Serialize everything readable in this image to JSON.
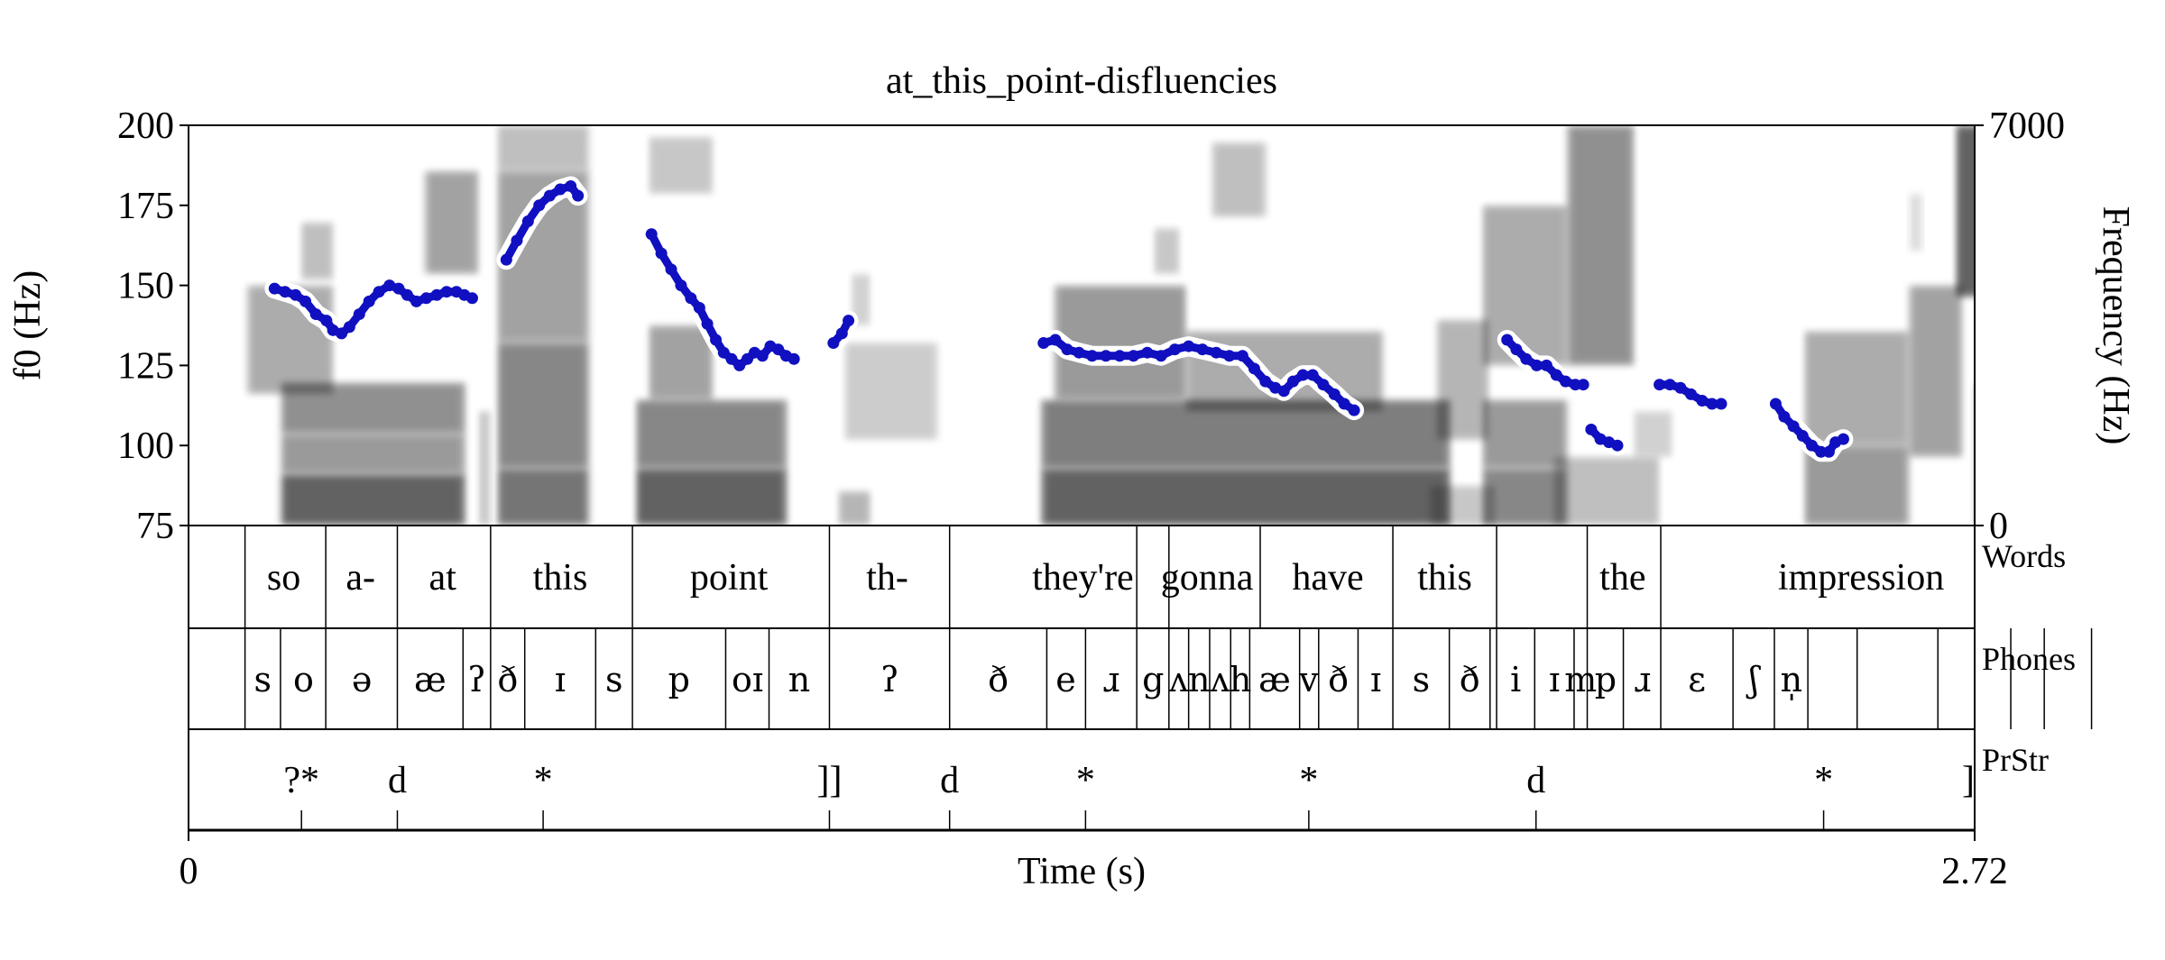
{
  "chart_data": {
    "type": "spectrogram-pitch",
    "title": "at_this_point-disfluencies",
    "xlabel": "Time (s)",
    "ylabel_left": "f0 (Hz)",
    "ylabel_right": "Frequency (Hz)",
    "xlim": [
      0,
      2.72
    ],
    "x_tick_labels": [
      "0",
      "2.72"
    ],
    "f0_range": [
      75,
      200
    ],
    "f0_ticks": [
      75,
      100,
      125,
      150,
      175,
      200
    ],
    "freq_range": [
      0,
      7000
    ],
    "freq_ticks": [
      0,
      7000
    ],
    "colors": {
      "pitch": "#1010c0",
      "pitch_halo": "#ffffff",
      "spectrogram": "#000000",
      "axis": "#000000"
    },
    "pitch_segments": [
      {
        "points": [
          [
            0.131,
            149
          ],
          [
            0.147,
            148
          ],
          [
            0.163,
            147
          ],
          [
            0.178,
            145
          ],
          [
            0.194,
            141
          ],
          [
            0.21,
            139
          ],
          [
            0.22,
            136
          ],
          [
            0.233,
            135
          ],
          [
            0.245,
            137
          ],
          [
            0.26,
            141
          ],
          [
            0.275,
            145
          ],
          [
            0.29,
            148
          ],
          [
            0.306,
            150
          ],
          [
            0.32,
            149
          ],
          [
            0.333,
            147
          ],
          [
            0.347,
            145
          ],
          [
            0.362,
            146
          ],
          [
            0.378,
            147
          ],
          [
            0.393,
            148
          ],
          [
            0.408,
            148
          ],
          [
            0.42,
            147
          ],
          [
            0.432,
            146
          ]
        ]
      },
      {
        "points": [
          [
            0.484,
            158
          ],
          [
            0.5,
            164
          ],
          [
            0.517,
            170
          ],
          [
            0.534,
            175
          ],
          [
            0.55,
            178
          ],
          [
            0.566,
            180
          ],
          [
            0.582,
            181
          ],
          [
            0.593,
            178
          ]
        ]
      },
      {
        "points": [
          [
            0.705,
            166
          ],
          [
            0.72,
            160
          ],
          [
            0.735,
            155
          ],
          [
            0.75,
            150
          ],
          [
            0.765,
            146
          ],
          [
            0.778,
            143
          ],
          [
            0.79,
            138
          ],
          [
            0.803,
            133
          ],
          [
            0.815,
            129
          ],
          [
            0.827,
            127
          ],
          [
            0.839,
            125
          ],
          [
            0.851,
            127
          ],
          [
            0.862,
            129
          ],
          [
            0.874,
            128
          ],
          [
            0.886,
            131
          ],
          [
            0.898,
            130
          ],
          [
            0.91,
            128
          ],
          [
            0.922,
            127
          ]
        ]
      },
      {
        "points": [
          [
            0.982,
            132
          ],
          [
            0.995,
            135
          ],
          [
            1.005,
            139
          ]
        ]
      },
      {
        "points": [
          [
            1.302,
            132
          ],
          [
            1.32,
            133
          ],
          [
            1.338,
            130
          ],
          [
            1.356,
            129
          ],
          [
            1.376,
            128
          ],
          [
            1.397,
            128
          ],
          [
            1.418,
            128
          ],
          [
            1.439,
            128
          ],
          [
            1.46,
            129
          ],
          [
            1.481,
            128
          ],
          [
            1.502,
            130
          ],
          [
            1.523,
            131
          ],
          [
            1.544,
            130
          ],
          [
            1.565,
            129
          ],
          [
            1.585,
            128
          ],
          [
            1.605,
            128
          ],
          [
            1.623,
            124
          ],
          [
            1.64,
            120
          ],
          [
            1.655,
            118
          ]
        ]
      },
      {
        "points": [
          [
            1.668,
            117
          ],
          [
            1.682,
            120
          ],
          [
            1.697,
            122
          ],
          [
            1.712,
            122
          ],
          [
            1.728,
            119
          ],
          [
            1.745,
            116
          ],
          [
            1.76,
            113
          ],
          [
            1.775,
            111
          ]
        ]
      },
      {
        "points": [
          [
            2.008,
            133
          ],
          [
            2.022,
            130
          ],
          [
            2.037,
            127
          ],
          [
            2.053,
            125
          ],
          [
            2.068,
            125
          ],
          [
            2.083,
            122
          ],
          [
            2.097,
            120
          ],
          [
            2.112,
            119
          ],
          [
            2.124,
            119
          ]
        ]
      },
      {
        "points": [
          [
            2.136,
            105
          ],
          [
            2.15,
            102
          ],
          [
            2.163,
            101
          ],
          [
            2.176,
            100
          ]
        ]
      },
      {
        "points": [
          [
            2.24,
            119
          ],
          [
            2.256,
            119
          ],
          [
            2.272,
            118
          ],
          [
            2.288,
            116
          ],
          [
            2.305,
            114
          ],
          [
            2.32,
            113
          ],
          [
            2.334,
            113
          ]
        ]
      },
      {
        "points": [
          [
            2.417,
            113
          ],
          [
            2.43,
            109
          ],
          [
            2.444,
            106
          ],
          [
            2.458,
            103
          ],
          [
            2.472,
            100
          ],
          [
            2.486,
            98
          ],
          [
            2.498,
            98
          ],
          [
            2.508,
            101
          ],
          [
            2.52,
            102
          ]
        ]
      }
    ],
    "spectrogram_blobs": [
      [
        0.14,
        0.42,
        0,
        900,
        0.85
      ],
      [
        0.14,
        0.42,
        900,
        1600,
        0.55
      ],
      [
        0.14,
        0.42,
        1600,
        2500,
        0.6
      ],
      [
        0.09,
        0.22,
        2300,
        4200,
        0.45
      ],
      [
        0.17,
        0.22,
        4300,
        5300,
        0.35
      ],
      [
        0.36,
        0.44,
        4400,
        6200,
        0.5
      ],
      [
        0.44,
        0.46,
        0,
        2000,
        0.3
      ],
      [
        0.47,
        0.61,
        0,
        1000,
        0.75
      ],
      [
        0.47,
        0.61,
        1000,
        3200,
        0.65
      ],
      [
        0.47,
        0.61,
        3200,
        6200,
        0.5
      ],
      [
        0.47,
        0.61,
        6200,
        7000,
        0.35
      ],
      [
        0.68,
        0.91,
        0,
        1000,
        0.85
      ],
      [
        0.68,
        0.91,
        1000,
        2200,
        0.65
      ],
      [
        0.7,
        0.8,
        2200,
        3500,
        0.5
      ],
      [
        0.7,
        0.8,
        5800,
        6800,
        0.3
      ],
      [
        0.99,
        1.04,
        0,
        600,
        0.4
      ],
      [
        1.0,
        1.14,
        1500,
        3200,
        0.28
      ],
      [
        1.01,
        1.04,
        3500,
        4400,
        0.25
      ],
      [
        1.3,
        1.92,
        0,
        1000,
        0.85
      ],
      [
        1.3,
        1.92,
        1000,
        2200,
        0.7
      ],
      [
        1.32,
        1.52,
        2200,
        4200,
        0.55
      ],
      [
        1.52,
        1.82,
        2000,
        3400,
        0.45
      ],
      [
        1.47,
        1.51,
        4400,
        5200,
        0.3
      ],
      [
        1.56,
        1.64,
        5400,
        6700,
        0.35
      ],
      [
        1.89,
        1.99,
        0,
        700,
        0.3
      ],
      [
        1.9,
        1.98,
        1500,
        3600,
        0.4
      ],
      [
        1.97,
        2.1,
        0,
        1000,
        0.65
      ],
      [
        1.97,
        2.1,
        1000,
        2200,
        0.55
      ],
      [
        1.97,
        2.1,
        2800,
        5600,
        0.45
      ],
      [
        2.1,
        2.2,
        2800,
        7000,
        0.6
      ],
      [
        2.08,
        2.24,
        0,
        1200,
        0.35
      ],
      [
        2.2,
        2.26,
        1200,
        2000,
        0.25
      ],
      [
        2.46,
        2.62,
        0,
        1400,
        0.55
      ],
      [
        2.46,
        2.62,
        1400,
        3400,
        0.45
      ],
      [
        2.62,
        2.7,
        1200,
        4200,
        0.5
      ],
      [
        2.69,
        2.84,
        4000,
        7000,
        0.85
      ],
      [
        2.72,
        2.86,
        0,
        2500,
        0.55
      ],
      [
        2.86,
        2.93,
        0,
        900,
        0.35
      ],
      [
        2.84,
        2.92,
        1800,
        3600,
        0.3
      ],
      [
        2.62,
        2.64,
        4800,
        5800,
        0.2
      ],
      [
        2.93,
        2.96,
        0,
        1600,
        0.3
      ],
      [
        2.95,
        2.98,
        0,
        600,
        0.25
      ]
    ],
    "tiers": [
      {
        "name": "Words",
        "boundaries": [
          0.086,
          0.209,
          0.318,
          0.46,
          0.676,
          0.976,
          1.159,
          1.444,
          1.493,
          1.632,
          1.834,
          1.992,
          2.13,
          2.242
        ],
        "labels": [
          [
            "so",
            0.145
          ],
          [
            "a-",
            0.262
          ],
          [
            "at",
            0.387
          ],
          [
            "this",
            0.566
          ],
          [
            "point",
            0.823
          ],
          [
            "th-",
            1.064
          ],
          [
            "they're",
            1.362
          ],
          [
            "gonna",
            1.551
          ],
          [
            "have",
            1.735
          ],
          [
            "this",
            1.913
          ],
          [
            "the",
            2.184
          ],
          [
            "impression",
            2.547
          ]
        ]
      },
      {
        "name": "Phones",
        "boundaries": [
          0.086,
          0.14,
          0.209,
          0.318,
          0.418,
          0.46,
          0.512,
          0.62,
          0.676,
          0.818,
          0.884,
          0.976,
          1.159,
          1.307,
          1.366,
          1.444,
          1.493,
          1.523,
          1.555,
          1.587,
          1.616,
          1.692,
          1.721,
          1.781,
          1.834,
          1.92,
          1.982,
          1.992,
          2.05,
          2.11,
          2.13,
          2.185,
          2.242,
          2.352,
          2.415,
          2.466,
          2.541,
          2.664,
          2.775,
          2.826,
          2.898
        ],
        "labels": [
          [
            "s",
            0.113
          ],
          [
            "o",
            0.175
          ],
          [
            "ə",
            0.264
          ],
          [
            "æ",
            0.368
          ],
          [
            "ʔ",
            0.439
          ],
          [
            "ð",
            0.486
          ],
          [
            "ɪ",
            0.566
          ],
          [
            "s",
            0.648
          ],
          [
            "p",
            0.747
          ],
          [
            "oɪ",
            0.851
          ],
          [
            "n",
            0.93
          ],
          [
            "ʔ",
            1.068
          ],
          [
            "ð",
            1.233
          ],
          [
            "e",
            1.336
          ],
          [
            "ɹ",
            1.405
          ],
          [
            "g",
            1.469
          ],
          [
            "ʌ",
            1.508
          ],
          [
            "n",
            1.539
          ],
          [
            "ʌ",
            1.571
          ],
          [
            "h",
            1.602
          ],
          [
            "æ",
            1.654
          ],
          [
            "v",
            1.706
          ],
          [
            "ð",
            1.751
          ],
          [
            "ɪ",
            1.808
          ],
          [
            "s",
            1.877
          ],
          [
            "ð",
            1.951
          ],
          [
            "i",
            2.021
          ],
          [
            "ɪ",
            2.08
          ],
          [
            "m",
            2.12
          ],
          [
            "p",
            2.158
          ],
          [
            "ɹ",
            2.214
          ],
          [
            "ɛ",
            2.297
          ],
          [
            "ʃ",
            2.384
          ],
          [
            "n̩",
            2.441
          ]
        ]
      },
      {
        "name": "PrStr",
        "points": [
          0.172,
          0.318,
          0.54,
          0.976,
          1.159,
          1.366,
          1.706,
          2.052,
          2.49
        ],
        "labels": [
          [
            "?*",
            0.172
          ],
          [
            "d",
            0.318
          ],
          [
            "*",
            0.54
          ],
          [
            "]]",
            0.976
          ],
          [
            "d",
            1.159
          ],
          [
            "*",
            1.366
          ],
          [
            "*",
            1.706
          ],
          [
            "d",
            2.052
          ],
          [
            "*",
            2.49
          ],
          [
            "]",
            2.72
          ]
        ]
      }
    ]
  }
}
